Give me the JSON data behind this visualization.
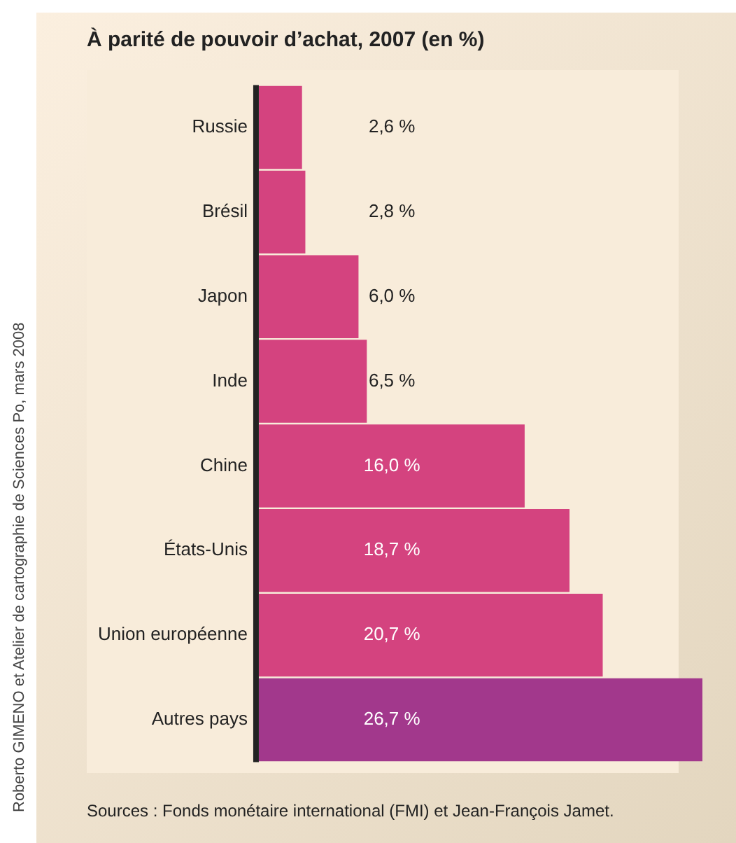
{
  "chart_data": {
    "type": "bar",
    "orientation": "horizontal",
    "title": "À parité de pouvoir d’achat, 2007 (en %)",
    "categories": [
      "Russie",
      "Brésil",
      "Japon",
      "Inde",
      "Chine",
      "États-Unis",
      "Union européenne",
      "Autres pays"
    ],
    "values": [
      2.6,
      2.8,
      6.0,
      6.5,
      16.0,
      18.7,
      20.7,
      26.7
    ],
    "colors": [
      "#d4437f",
      "#d4437f",
      "#d4437f",
      "#d4437f",
      "#d4437f",
      "#d4437f",
      "#d4437f",
      "#a2388c"
    ],
    "value_labels": [
      "2,6 %",
      "2,8 %",
      "6,0 %",
      "6,5 %",
      "16,0 %",
      "18,7 %",
      "20,7 %",
      "26,7 %"
    ],
    "annotations": [
      "Roberto GIMENO et Atelier de cartographie de Sciences Po, mars 2008",
      "Sources : Fonds monétaire international (FMI) et Jean-François Jamet."
    ],
    "grid": false,
    "legend": false
  }
}
